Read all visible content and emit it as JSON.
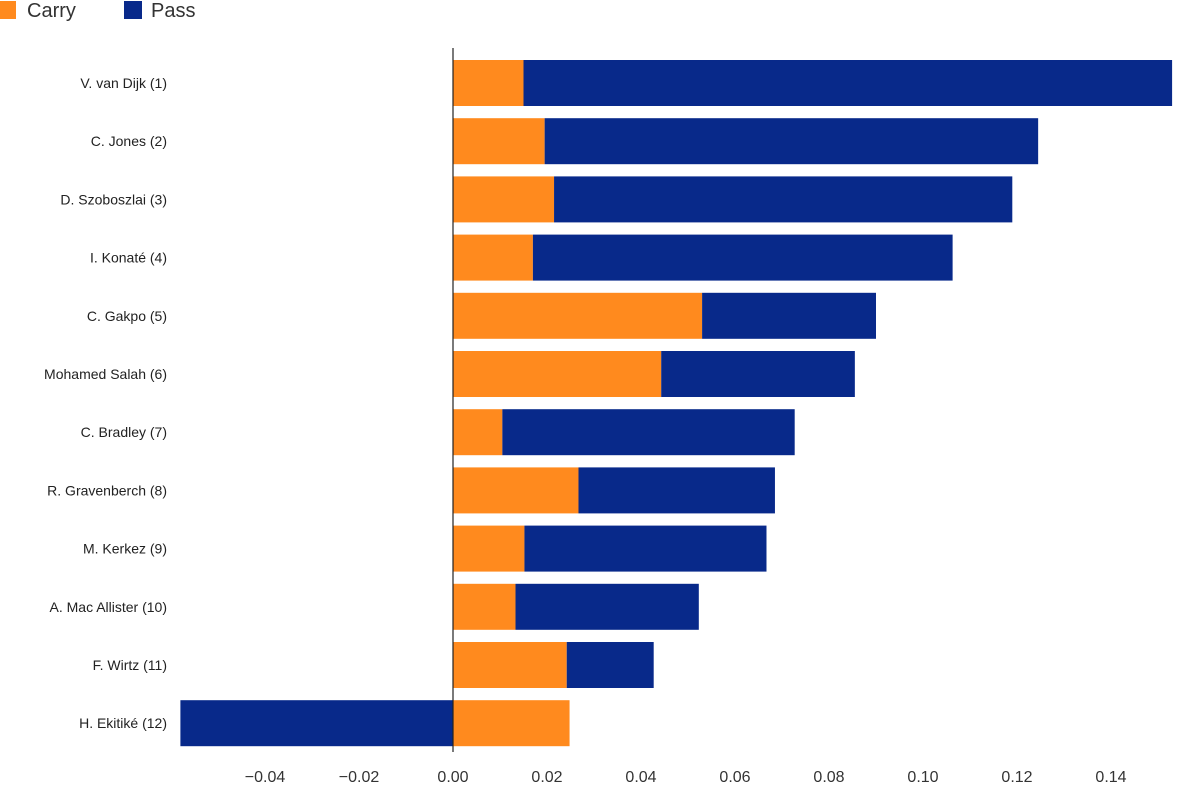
{
  "chart_data": {
    "type": "bar",
    "orientation": "horizontal",
    "stacked": true,
    "categories": [
      "V. van Dijk (1)",
      "C. Jones (2)",
      "D. Szoboszlai (3)",
      "I. Konaté (4)",
      "C. Gakpo (5)",
      "Mohamed Salah (6)",
      "C. Bradley (7)",
      "R. Gravenberch (8)",
      "M. Kerkez (9)",
      "A. Mac Allister (10)",
      "F. Wirtz (11)",
      "H. Ekitiké (12)"
    ],
    "series": [
      {
        "name": "Carry",
        "color": "#FF8A1E",
        "values": [
          0.015,
          0.0195,
          0.0215,
          0.017,
          0.053,
          0.0443,
          0.0105,
          0.0267,
          0.0152,
          0.0133,
          0.0242,
          0.0248
        ]
      },
      {
        "name": "Pass",
        "color": "#08298A",
        "values": [
          0.138,
          0.105,
          0.0975,
          0.0893,
          0.037,
          0.0412,
          0.0622,
          0.0418,
          0.0515,
          0.039,
          0.0185,
          -0.058
        ]
      }
    ],
    "title": "",
    "xlabel": "",
    "ylabel": "",
    "xlim": [
      -0.058,
      0.153
    ],
    "xticks": [
      -0.04,
      -0.02,
      0.0,
      0.02,
      0.04,
      0.06,
      0.08,
      0.1,
      0.12,
      0.14
    ],
    "xtick_labels": [
      "−0.04",
      "−0.02",
      "0.00",
      "0.02",
      "0.04",
      "0.06",
      "0.08",
      "0.10",
      "0.12",
      "0.14"
    ],
    "grid": false,
    "legend_position": "top-left"
  }
}
